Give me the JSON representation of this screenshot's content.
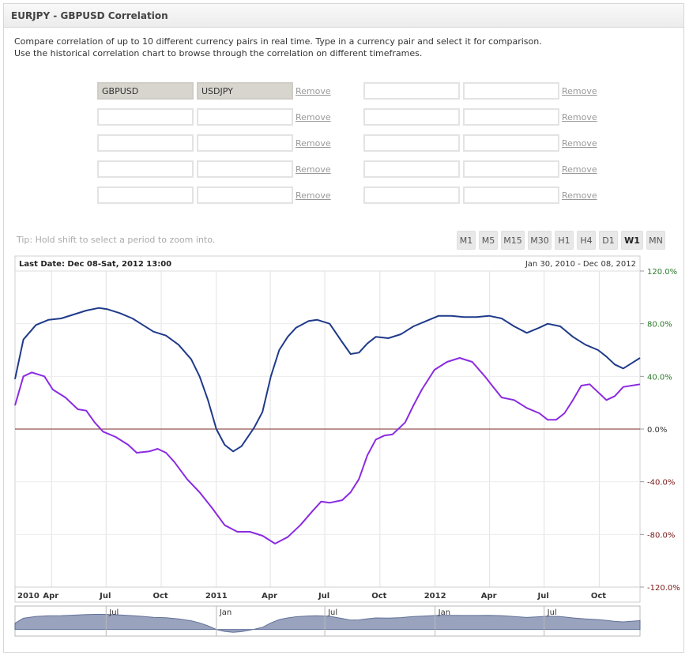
{
  "header": {
    "title": "EURJPY - GBPUSD Correlation"
  },
  "intro": {
    "line1": "Compare correlation of up to 10 different currency pairs in real time. Type in a currency pair and select it for comparison.",
    "line2": "Use the historical correlation chart to browse through the correlation on different timeframes."
  },
  "pairs": {
    "remove_label": "Remove",
    "left": [
      {
        "a": "GBPUSD",
        "b": "USDJPY"
      },
      {
        "a": "",
        "b": ""
      },
      {
        "a": "",
        "b": ""
      },
      {
        "a": "",
        "b": ""
      },
      {
        "a": "",
        "b": ""
      }
    ],
    "right": [
      {
        "a": "",
        "b": ""
      },
      {
        "a": "",
        "b": ""
      },
      {
        "a": "",
        "b": ""
      },
      {
        "a": "",
        "b": ""
      },
      {
        "a": "",
        "b": ""
      }
    ]
  },
  "tip": "Tip: Hold shift to select a period to zoom into.",
  "timeframes": {
    "items": [
      "M1",
      "M5",
      "M15",
      "M30",
      "H1",
      "H4",
      "D1",
      "W1",
      "MN"
    ],
    "active": "W1"
  },
  "colors": {
    "gbpusd_line": "#1f3a8a",
    "usdjpy_line": "#8a2be2",
    "zero_line": "#7a2a2a",
    "positive_label": "#2a7a2a",
    "negative_label": "#7a1a1a",
    "navigator_fill": "#8893b3"
  },
  "chart_data": {
    "type": "line",
    "title": "Last Date: Dec 08-Sat, 2012 13:00",
    "range_label": "Jan 30, 2010 - Dec 08, 2012",
    "ylim": [
      -120,
      120
    ],
    "yticks": [
      "120.0%",
      "80.0%",
      "40.0%",
      "0.0%",
      "-40.0%",
      "-80.0%",
      "-120.0%"
    ],
    "ytick_values": [
      120,
      80,
      40,
      0,
      -40,
      -80,
      -120
    ],
    "xlim": [
      "2010-01-30",
      "2012-12-08"
    ],
    "xticks": [
      {
        "date": "2010-01-01",
        "label": "2010"
      },
      {
        "date": "2010-04-01",
        "label": "Apr"
      },
      {
        "date": "2010-07-01",
        "label": "Jul"
      },
      {
        "date": "2010-10-01",
        "label": "Oct"
      },
      {
        "date": "2011-01-01",
        "label": "2011"
      },
      {
        "date": "2011-04-01",
        "label": "Apr"
      },
      {
        "date": "2011-07-01",
        "label": "Jul"
      },
      {
        "date": "2011-10-01",
        "label": "Oct"
      },
      {
        "date": "2012-01-01",
        "label": "2012"
      },
      {
        "date": "2012-04-01",
        "label": "Apr"
      },
      {
        "date": "2012-07-01",
        "label": "Jul"
      },
      {
        "date": "2012-10-01",
        "label": "Oct"
      }
    ],
    "navigator_ticks": [
      {
        "date": "2010-07-01",
        "label": "Jul"
      },
      {
        "date": "2011-01-01",
        "label": "Jan"
      },
      {
        "date": "2011-07-01",
        "label": "Jul"
      },
      {
        "date": "2012-01-01",
        "label": "Jan"
      },
      {
        "date": "2012-07-01",
        "label": "Jul"
      }
    ],
    "bold_tick_labels": [
      "2010",
      "2011",
      "2012"
    ],
    "series": [
      {
        "name": "GBPUSD",
        "points": [
          [
            "2010-01-30",
            38
          ],
          [
            "2010-02-13",
            68
          ],
          [
            "2010-03-06",
            79
          ],
          [
            "2010-03-27",
            83
          ],
          [
            "2010-04-17",
            84
          ],
          [
            "2010-05-08",
            87
          ],
          [
            "2010-05-29",
            90
          ],
          [
            "2010-06-19",
            92
          ],
          [
            "2010-07-03",
            91
          ],
          [
            "2010-07-24",
            88
          ],
          [
            "2010-08-14",
            84
          ],
          [
            "2010-08-28",
            80
          ],
          [
            "2010-09-18",
            74
          ],
          [
            "2010-10-09",
            71
          ],
          [
            "2010-10-30",
            64
          ],
          [
            "2010-11-20",
            53
          ],
          [
            "2010-12-04",
            40
          ],
          [
            "2010-12-18",
            22
          ],
          [
            "2011-01-01",
            0
          ],
          [
            "2011-01-15",
            -12
          ],
          [
            "2011-01-29",
            -17
          ],
          [
            "2011-02-12",
            -13
          ],
          [
            "2011-03-05",
            1
          ],
          [
            "2011-03-19",
            13
          ],
          [
            "2011-04-02",
            40
          ],
          [
            "2011-04-16",
            60
          ],
          [
            "2011-04-30",
            70
          ],
          [
            "2011-05-14",
            77
          ],
          [
            "2011-06-04",
            82
          ],
          [
            "2011-06-18",
            83
          ],
          [
            "2011-07-09",
            80
          ],
          [
            "2011-07-30",
            66
          ],
          [
            "2011-08-13",
            57
          ],
          [
            "2011-08-27",
            58
          ],
          [
            "2011-09-10",
            65
          ],
          [
            "2011-09-24",
            70
          ],
          [
            "2011-10-15",
            69
          ],
          [
            "2011-11-05",
            72
          ],
          [
            "2011-11-26",
            78
          ],
          [
            "2011-12-17",
            82
          ],
          [
            "2012-01-07",
            86
          ],
          [
            "2012-01-28",
            86
          ],
          [
            "2012-02-18",
            85
          ],
          [
            "2012-03-10",
            85
          ],
          [
            "2012-03-31",
            86
          ],
          [
            "2012-04-21",
            84
          ],
          [
            "2012-05-12",
            78
          ],
          [
            "2012-06-02",
            73
          ],
          [
            "2012-06-23",
            77
          ],
          [
            "2012-07-07",
            80
          ],
          [
            "2012-07-28",
            78
          ],
          [
            "2012-08-18",
            70
          ],
          [
            "2012-09-08",
            64
          ],
          [
            "2012-09-29",
            60
          ],
          [
            "2012-10-13",
            55
          ],
          [
            "2012-10-27",
            49
          ],
          [
            "2012-11-10",
            46
          ],
          [
            "2012-11-24",
            50
          ],
          [
            "2012-12-08",
            54
          ]
        ]
      },
      {
        "name": "USDJPY",
        "points": [
          [
            "2010-01-30",
            18
          ],
          [
            "2010-02-13",
            40
          ],
          [
            "2010-02-27",
            43
          ],
          [
            "2010-03-20",
            40
          ],
          [
            "2010-04-03",
            30
          ],
          [
            "2010-04-24",
            24
          ],
          [
            "2010-05-15",
            15
          ],
          [
            "2010-05-29",
            14
          ],
          [
            "2010-06-12",
            5
          ],
          [
            "2010-06-26",
            -2
          ],
          [
            "2010-07-17",
            -6
          ],
          [
            "2010-08-07",
            -12
          ],
          [
            "2010-08-21",
            -18
          ],
          [
            "2010-09-11",
            -17
          ],
          [
            "2010-09-25",
            -15
          ],
          [
            "2010-10-09",
            -18
          ],
          [
            "2010-10-23",
            -25
          ],
          [
            "2010-11-13",
            -38
          ],
          [
            "2010-12-04",
            -48
          ],
          [
            "2010-12-25",
            -60
          ],
          [
            "2011-01-15",
            -73
          ],
          [
            "2011-02-05",
            -78
          ],
          [
            "2011-02-26",
            -78
          ],
          [
            "2011-03-19",
            -81
          ],
          [
            "2011-04-09",
            -87
          ],
          [
            "2011-04-30",
            -82
          ],
          [
            "2011-05-21",
            -73
          ],
          [
            "2011-06-11",
            -62
          ],
          [
            "2011-06-25",
            -55
          ],
          [
            "2011-07-09",
            -56
          ],
          [
            "2011-07-30",
            -54
          ],
          [
            "2011-08-13",
            -48
          ],
          [
            "2011-08-27",
            -38
          ],
          [
            "2011-09-10",
            -20
          ],
          [
            "2011-09-24",
            -8
          ],
          [
            "2011-10-08",
            -5
          ],
          [
            "2011-10-22",
            -4
          ],
          [
            "2011-11-12",
            5
          ],
          [
            "2011-11-26",
            18
          ],
          [
            "2011-12-10",
            30
          ],
          [
            "2011-12-31",
            45
          ],
          [
            "2012-01-21",
            51
          ],
          [
            "2012-02-11",
            54
          ],
          [
            "2012-03-03",
            51
          ],
          [
            "2012-03-24",
            40
          ],
          [
            "2012-04-07",
            32
          ],
          [
            "2012-04-21",
            24
          ],
          [
            "2012-05-12",
            22
          ],
          [
            "2012-06-02",
            16
          ],
          [
            "2012-06-23",
            12
          ],
          [
            "2012-07-07",
            7
          ],
          [
            "2012-07-21",
            7
          ],
          [
            "2012-08-04",
            12
          ],
          [
            "2012-08-18",
            22
          ],
          [
            "2012-09-01",
            33
          ],
          [
            "2012-09-15",
            34
          ],
          [
            "2012-09-29",
            28
          ],
          [
            "2012-10-13",
            22
          ],
          [
            "2012-10-27",
            25
          ],
          [
            "2012-11-10",
            32
          ],
          [
            "2012-11-24",
            33
          ],
          [
            "2012-12-08",
            34
          ]
        ]
      }
    ]
  }
}
